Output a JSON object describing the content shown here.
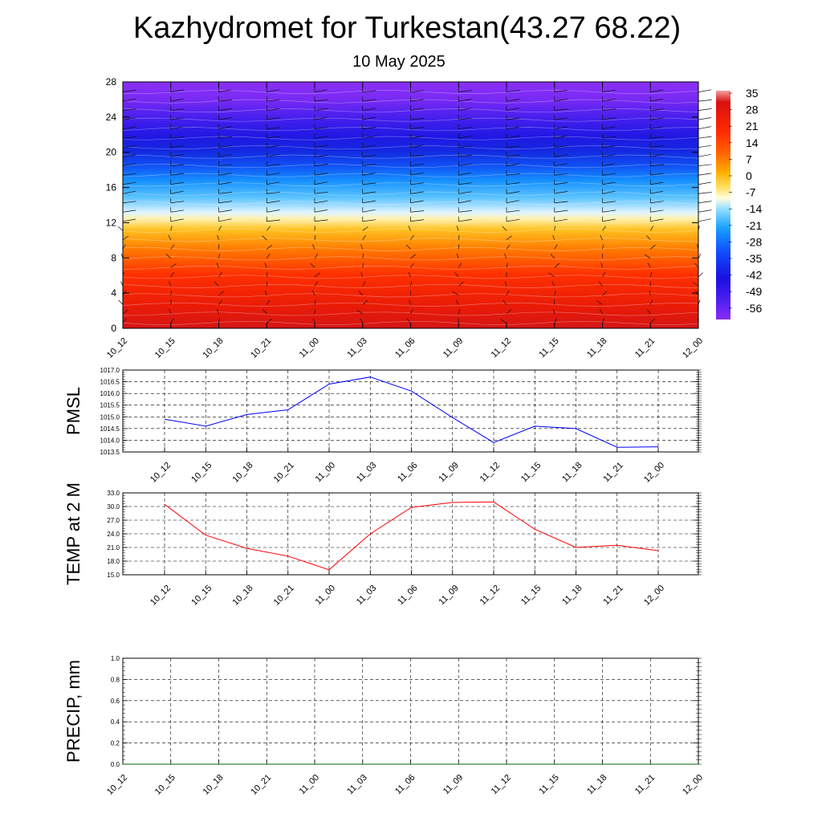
{
  "title": "Kazhydromet for Turkestan(43.27 68.22)",
  "subtitle": "10 May 2025",
  "colors": {
    "pmsl_line": "#0000ff",
    "temp_line": "#ff0000",
    "precip_line": "#006400",
    "grid": "#000000",
    "colorbar_stops": [
      "#f4a0a0",
      "#d81010",
      "#ff2a00",
      "#ff6a00",
      "#ffb000",
      "#ffe060",
      "#fffde0",
      "#8fdcff",
      "#1aa0ff",
      "#1050ff",
      "#1a10e0",
      "#3010f0",
      "#8a2cf6"
    ]
  },
  "chart_data": [
    {
      "type": "heatmap",
      "name": "vertical temperature and wind cross-section",
      "x": [
        "10_12",
        "10_15",
        "10_18",
        "10_21",
        "11_00",
        "11_03",
        "11_06",
        "11_09",
        "11_12",
        "11_15",
        "11_18",
        "11_21",
        "12_00"
      ],
      "ylim": [
        0,
        28
      ],
      "yticks": [
        0,
        4,
        8,
        12,
        16,
        20,
        24,
        28
      ],
      "colorbar_labels": [
        "35",
        "28",
        "21",
        "14",
        "7",
        "0",
        "-7",
        "-14",
        "-21",
        "-28",
        "-35",
        "-42",
        "-49",
        "-56"
      ],
      "has_wind_barbs": true
    },
    {
      "type": "line",
      "ylabel": "PMSL",
      "ylim": [
        1013.5,
        1017.0
      ],
      "yticks": [
        "1013.5",
        "1014.0",
        "1014.5",
        "1015.0",
        "1015.5",
        "1016.0",
        "1016.5",
        "1017.0"
      ],
      "x": [
        "10_12",
        "10_15",
        "10_18",
        "10_21",
        "11_00",
        "11_03",
        "11_06",
        "11_09",
        "11_12",
        "11_15",
        "11_18",
        "11_21",
        "12_00"
      ],
      "series": [
        {
          "values": [
            1014.9,
            1014.6,
            1015.1,
            1015.3,
            1016.4,
            1016.7,
            1016.1,
            1014.97,
            1013.9,
            1014.6,
            1014.5,
            1013.7,
            1013.72
          ]
        }
      ],
      "grid": true
    },
    {
      "type": "line",
      "ylabel": "TEMP at 2 M",
      "ylim": [
        15.0,
        33.0
      ],
      "yticks": [
        "15.0",
        "18.0",
        "21.0",
        "24.0",
        "27.0",
        "30.0",
        "33.0"
      ],
      "x": [
        "10_12",
        "10_15",
        "10_18",
        "10_21",
        "11_00",
        "11_03",
        "11_06",
        "11_09",
        "11_12",
        "11_15",
        "11_18",
        "11_21",
        "12_00"
      ],
      "series": [
        {
          "values": [
            30.5,
            23.7,
            20.8,
            19.1,
            16.1,
            24.0,
            29.8,
            30.9,
            31.0,
            25.0,
            21.0,
            21.5,
            20.3
          ]
        }
      ],
      "grid": true
    },
    {
      "type": "line",
      "ylabel": "PRECIP, mm",
      "ylim": [
        0.0,
        1.0
      ],
      "yticks": [
        "0.0",
        "0.2",
        "0.4",
        "0.6",
        "0.8",
        "1.0"
      ],
      "x": [
        "10_12",
        "10_15",
        "10_18",
        "10_21",
        "11_00",
        "11_03",
        "11_06",
        "11_09",
        "11_12",
        "11_15",
        "11_18",
        "11_21",
        "12_00"
      ],
      "series": [
        {
          "values": [
            0,
            0,
            0,
            0,
            0,
            0,
            0,
            0,
            0,
            0,
            0,
            0,
            0
          ]
        }
      ],
      "grid": true
    }
  ]
}
